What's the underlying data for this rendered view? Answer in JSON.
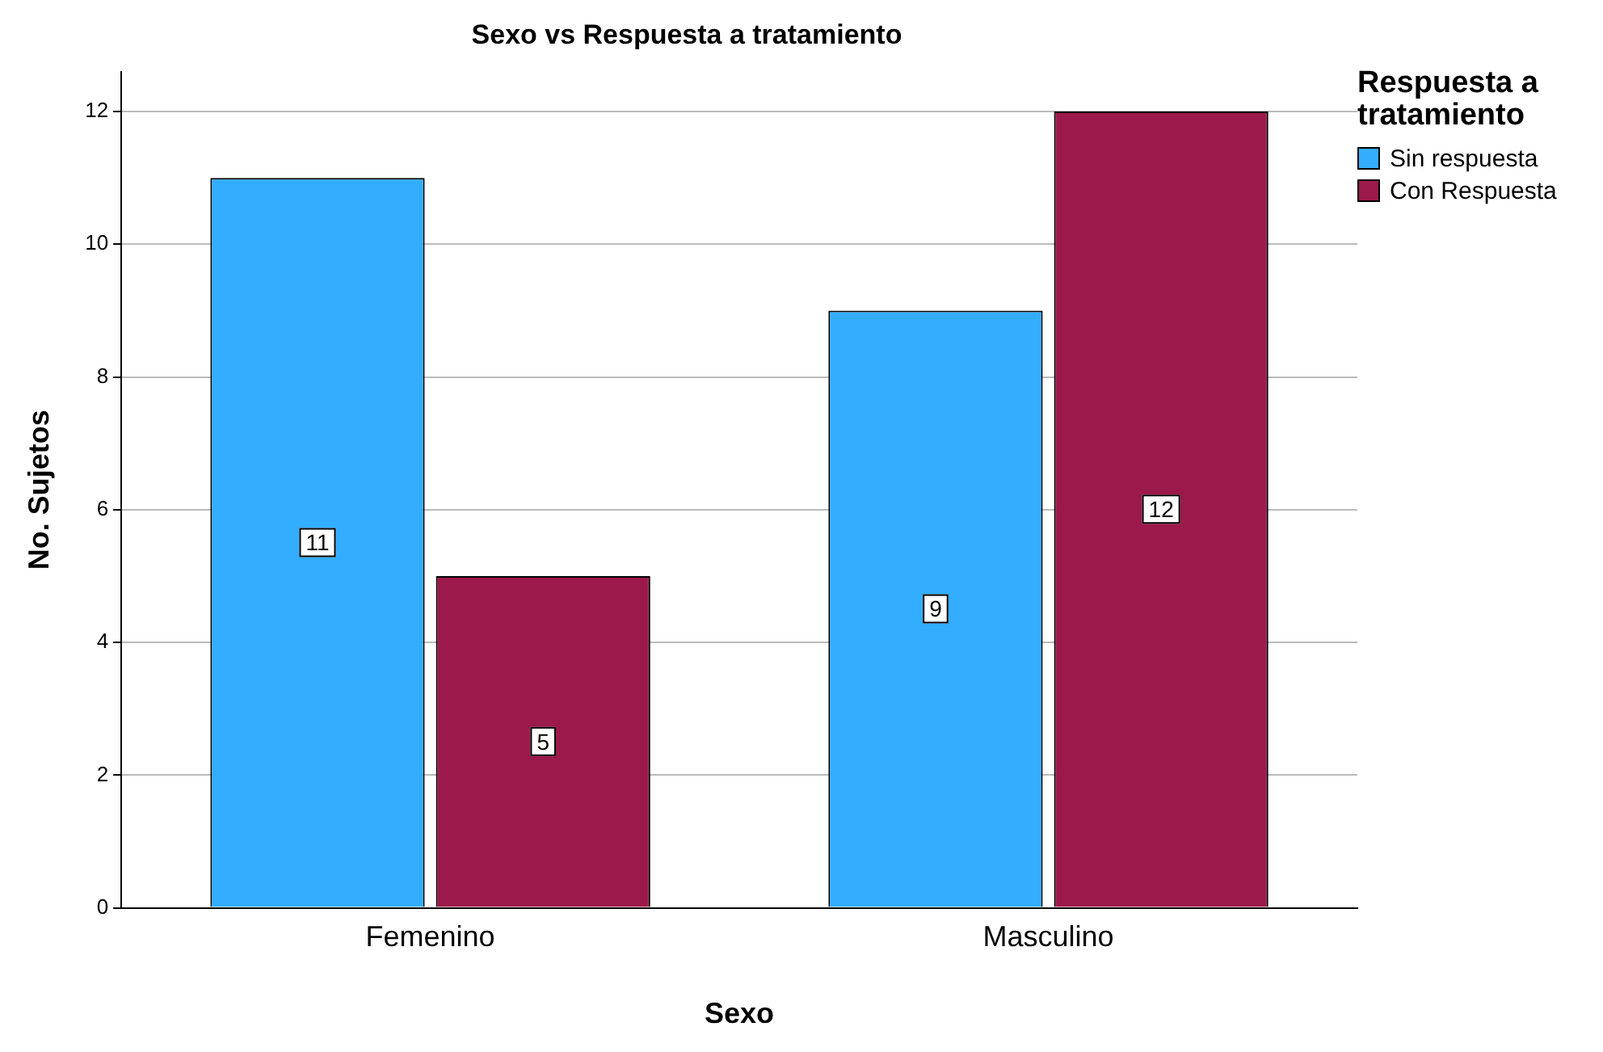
{
  "chart_data": {
    "type": "bar",
    "title": "Sexo vs Respuesta a tratamiento",
    "xlabel": "Sexo",
    "ylabel": "No. Sujetos",
    "legend_title": "Respuesta a tratamiento",
    "categories": [
      "Femenino",
      "Masculino"
    ],
    "series": [
      {
        "name": "Sin respuesta",
        "color": "#33adff",
        "values": [
          11,
          9
        ]
      },
      {
        "name": "Con Respuesta",
        "color": "#9c1a4b",
        "values": [
          5,
          12
        ]
      }
    ],
    "ylim": [
      0,
      12.6
    ],
    "yticks": [
      0,
      2,
      4,
      6,
      8,
      10,
      12
    ],
    "grid": "y",
    "legend": "top right",
    "data_labels": true
  }
}
